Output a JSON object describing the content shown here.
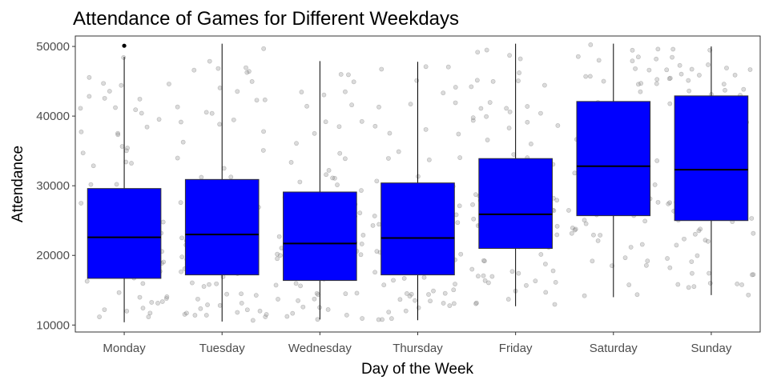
{
  "chart_data": {
    "type": "box",
    "title": "Attendance of Games for Different Weekdays",
    "xlabel": "Day of the Week",
    "ylabel": "Attendance",
    "categories": [
      "Monday",
      "Tuesday",
      "Wednesday",
      "Thursday",
      "Friday",
      "Saturday",
      "Sunday"
    ],
    "ylim": [
      9000,
      51500
    ],
    "yticks": [
      10000,
      20000,
      30000,
      40000,
      50000
    ],
    "ytick_labels": [
      "10000",
      "20000",
      "30000",
      "40000",
      "50000"
    ],
    "box_color": "#0000ff",
    "jitter_color": "#999999",
    "grid": false,
    "boxes": [
      {
        "category": "Monday",
        "lower_whisker": 10400,
        "q1": 16700,
        "median": 22600,
        "q3": 29600,
        "upper_whisker": 48500,
        "outliers": [
          50100
        ]
      },
      {
        "category": "Tuesday",
        "lower_whisker": 10500,
        "q1": 17200,
        "median": 23000,
        "q3": 30900,
        "upper_whisker": 50400,
        "outliers": []
      },
      {
        "category": "Wednesday",
        "lower_whisker": 10800,
        "q1": 16400,
        "median": 21700,
        "q3": 29100,
        "upper_whisker": 47900,
        "outliers": []
      },
      {
        "category": "Thursday",
        "lower_whisker": 10700,
        "q1": 17200,
        "median": 22500,
        "q3": 30400,
        "upper_whisker": 47800,
        "outliers": []
      },
      {
        "category": "Friday",
        "lower_whisker": 12700,
        "q1": 21000,
        "median": 25900,
        "q3": 33900,
        "upper_whisker": 50400,
        "outliers": []
      },
      {
        "category": "Saturday",
        "lower_whisker": 14000,
        "q1": 25700,
        "median": 32800,
        "q3": 42100,
        "upper_whisker": 50400,
        "outliers": []
      },
      {
        "category": "Sunday",
        "lower_whisker": 14300,
        "q1": 25000,
        "median": 32300,
        "q3": 42900,
        "upper_whisker": 50000,
        "outliers": []
      }
    ]
  }
}
